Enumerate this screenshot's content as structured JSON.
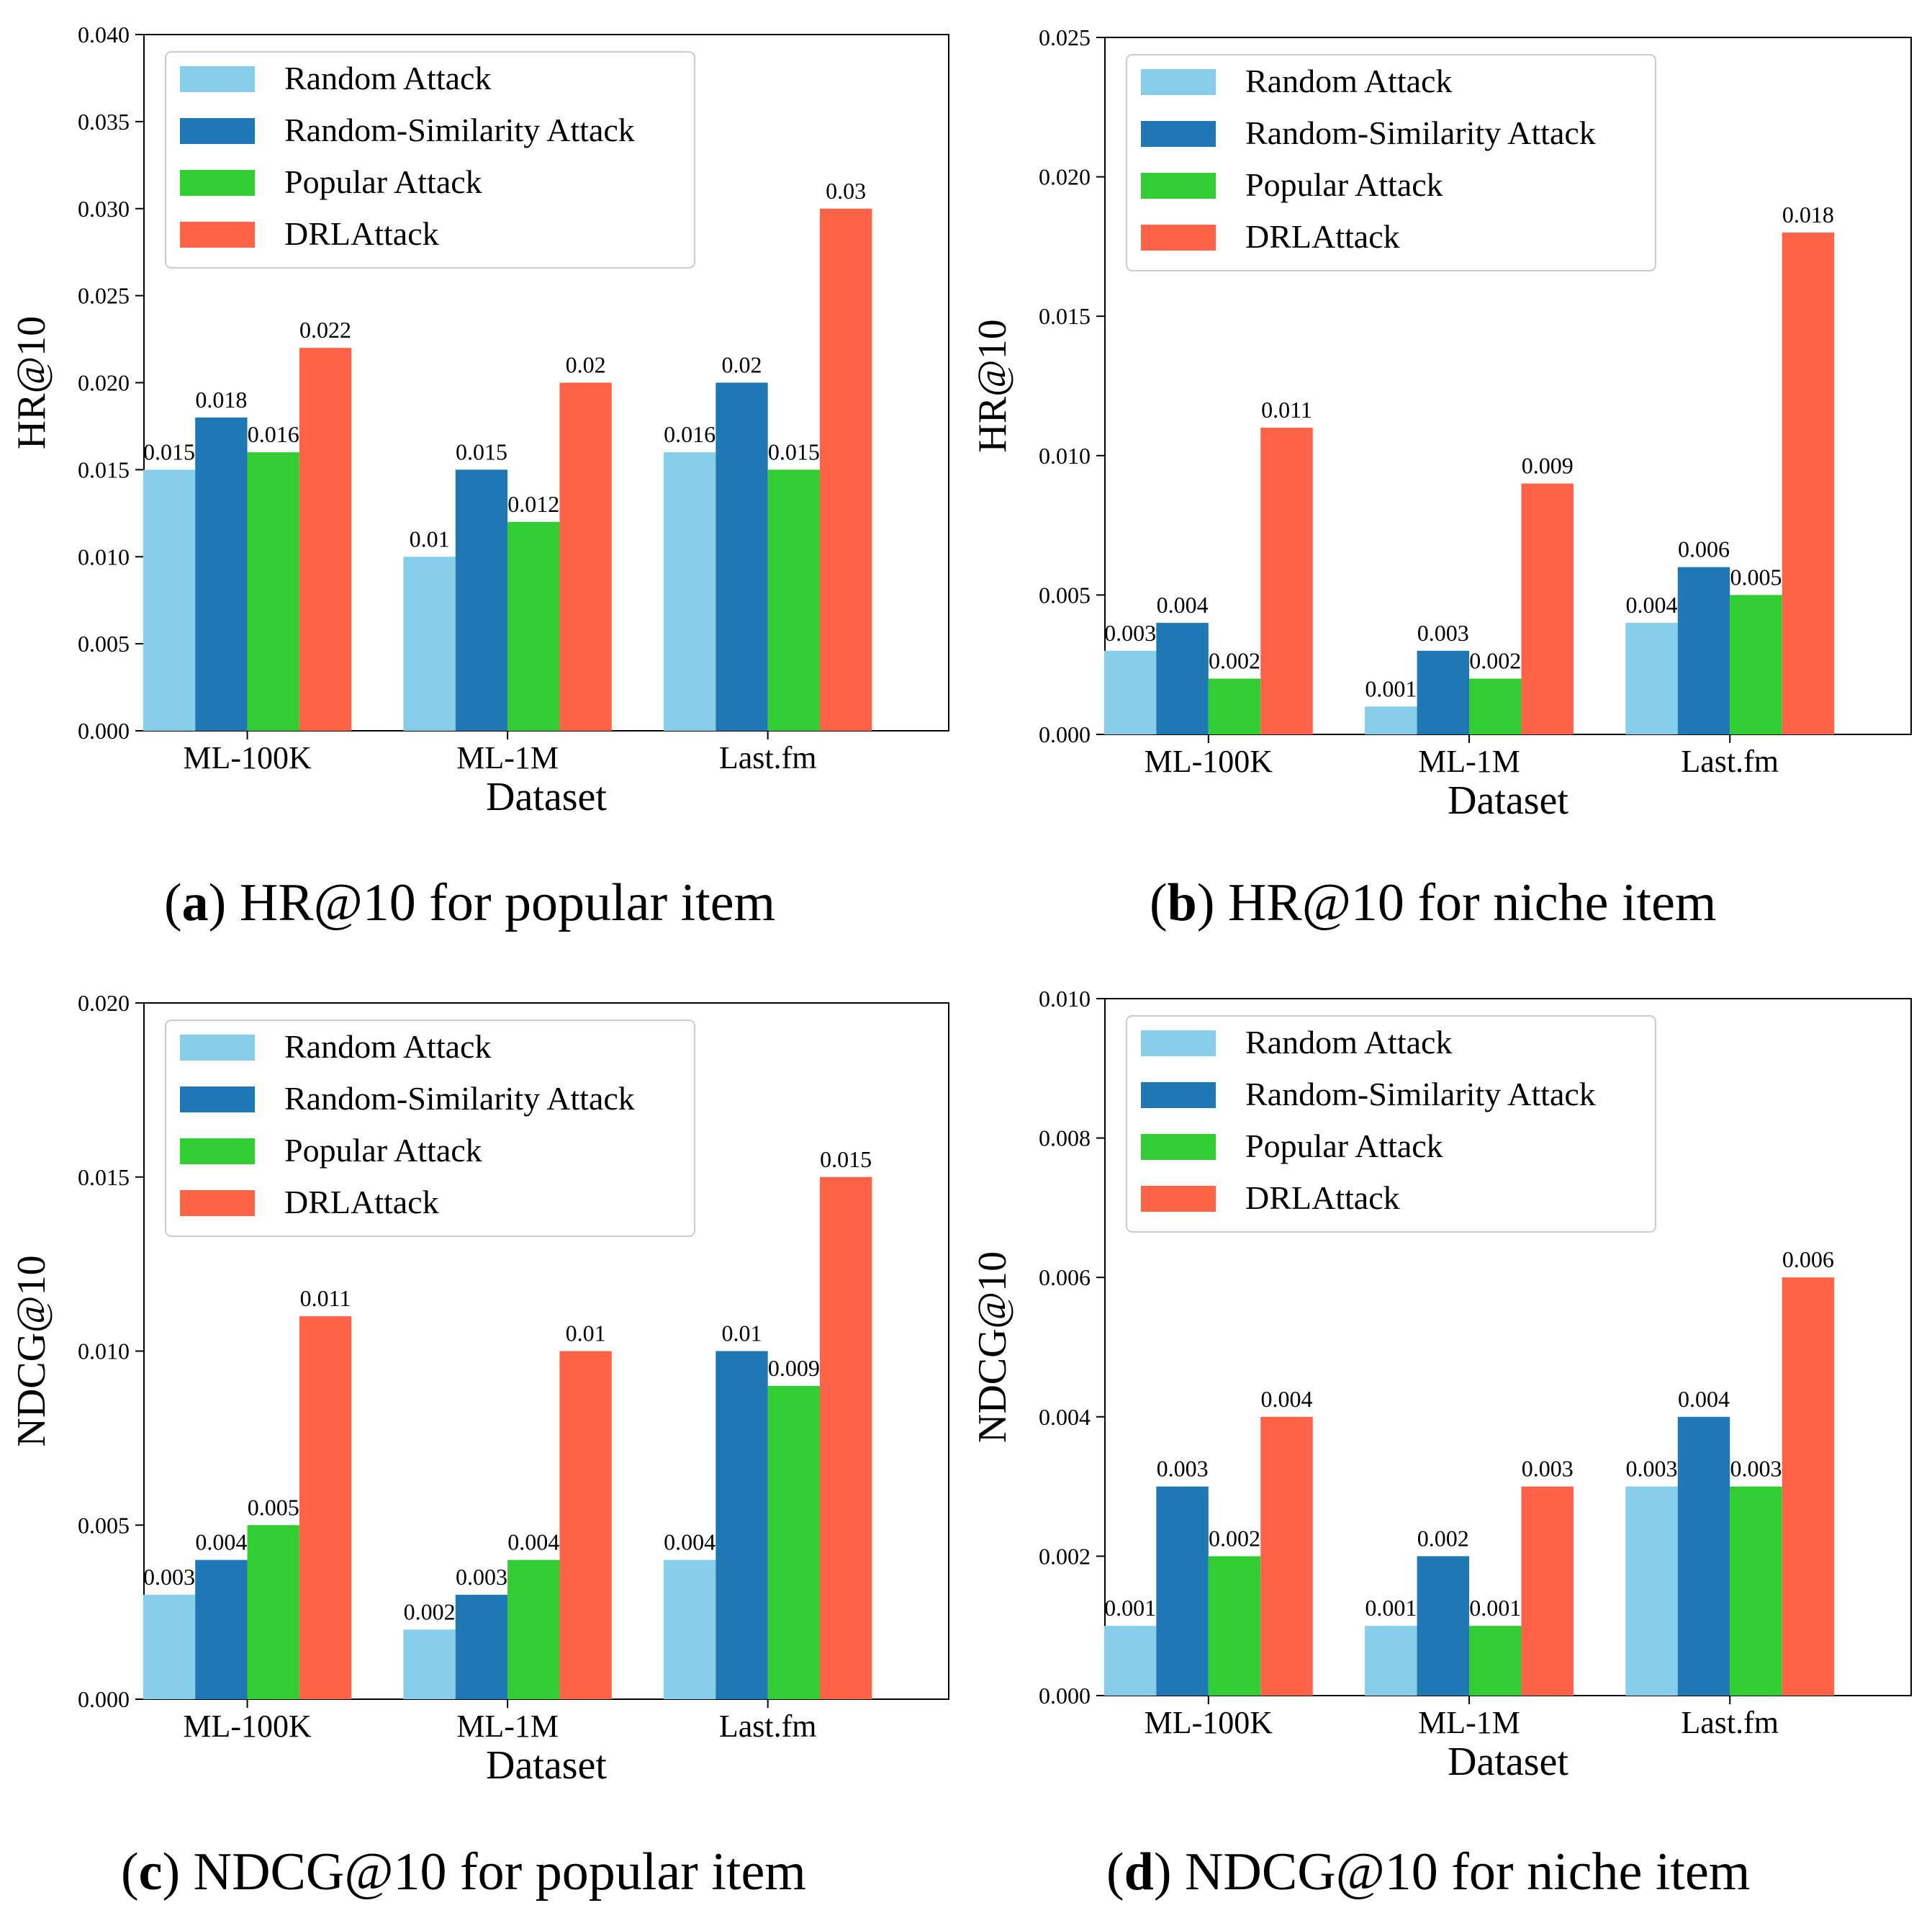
{
  "colors": {
    "Random Attack": "#87CEEB",
    "Random-Similarity Attack": "#1F77B4",
    "Popular Attack": "#32CD32",
    "DRLAttack": "#FF6347"
  },
  "chart_data": [
    {
      "type": "bar",
      "caption_letter": "a",
      "caption_text": "HR@10 for popular item",
      "xlabel": "Dataset",
      "ylabel": "HR@10",
      "categories": [
        "ML-100K",
        "ML-1M",
        "Last.fm"
      ],
      "ylim": [
        0,
        0.04
      ],
      "yticks": [
        "0.000",
        "0.005",
        "0.010",
        "0.015",
        "0.020",
        "0.025",
        "0.030",
        "0.035",
        "0.040"
      ],
      "legend_position": "upper-left",
      "series": [
        {
          "name": "Random Attack",
          "values": [
            0.015,
            0.01,
            0.016
          ],
          "labels": [
            "0.015",
            "0.01",
            "0.016"
          ]
        },
        {
          "name": "Random-Similarity Attack",
          "values": [
            0.018,
            0.015,
            0.02
          ],
          "labels": [
            "0.018",
            "0.015",
            "0.02"
          ]
        },
        {
          "name": "Popular Attack",
          "values": [
            0.016,
            0.012,
            0.015
          ],
          "labels": [
            "0.016",
            "0.012",
            "0.015"
          ]
        },
        {
          "name": "DRLAttack",
          "values": [
            0.022,
            0.02,
            0.03
          ],
          "labels": [
            "0.022",
            "0.02",
            "0.03"
          ]
        }
      ]
    },
    {
      "type": "bar",
      "caption_letter": "b",
      "caption_text": "HR@10 for niche item",
      "xlabel": "Dataset",
      "ylabel": "HR@10",
      "categories": [
        "ML-100K",
        "ML-1M",
        "Last.fm"
      ],
      "ylim": [
        0,
        0.025
      ],
      "yticks": [
        "0.000",
        "0.005",
        "0.010",
        "0.015",
        "0.020",
        "0.025"
      ],
      "legend_position": "upper-left",
      "series": [
        {
          "name": "Random Attack",
          "values": [
            0.003,
            0.001,
            0.004
          ],
          "labels": [
            "0.003",
            "0.001",
            "0.004"
          ]
        },
        {
          "name": "Random-Similarity Attack",
          "values": [
            0.004,
            0.003,
            0.006
          ],
          "labels": [
            "0.004",
            "0.003",
            "0.006"
          ]
        },
        {
          "name": "Popular Attack",
          "values": [
            0.002,
            0.002,
            0.005
          ],
          "labels": [
            "0.002",
            "0.002",
            "0.005"
          ]
        },
        {
          "name": "DRLAttack",
          "values": [
            0.011,
            0.009,
            0.018
          ],
          "labels": [
            "0.011",
            "0.009",
            "0.018"
          ]
        }
      ]
    },
    {
      "type": "bar",
      "caption_letter": "c",
      "caption_text": "NDCG@10 for popular item",
      "xlabel": "Dataset",
      "ylabel": "NDCG@10",
      "categories": [
        "ML-100K",
        "ML-1M",
        "Last.fm"
      ],
      "ylim": [
        0,
        0.02
      ],
      "yticks": [
        "0.000",
        "0.005",
        "0.010",
        "0.015",
        "0.020"
      ],
      "legend_position": "upper-left",
      "series": [
        {
          "name": "Random Attack",
          "values": [
            0.003,
            0.002,
            0.004
          ],
          "labels": [
            "0.003",
            "0.002",
            "0.004"
          ]
        },
        {
          "name": "Random-Similarity Attack",
          "values": [
            0.004,
            0.003,
            0.01
          ],
          "labels": [
            "0.004",
            "0.003",
            "0.01"
          ]
        },
        {
          "name": "Popular Attack",
          "values": [
            0.005,
            0.004,
            0.009
          ],
          "labels": [
            "0.005",
            "0.004",
            "0.009"
          ]
        },
        {
          "name": "DRLAttack",
          "values": [
            0.011,
            0.01,
            0.015
          ],
          "labels": [
            "0.011",
            "0.01",
            "0.015"
          ]
        }
      ]
    },
    {
      "type": "bar",
      "caption_letter": "d",
      "caption_text": "NDCG@10 for niche item",
      "xlabel": "Dataset",
      "ylabel": "NDCG@10",
      "categories": [
        "ML-100K",
        "ML-1M",
        "Last.fm"
      ],
      "ylim": [
        0,
        0.01
      ],
      "yticks": [
        "0.000",
        "0.002",
        "0.004",
        "0.006",
        "0.008",
        "0.010"
      ],
      "legend_position": "upper-left",
      "series": [
        {
          "name": "Random Attack",
          "values": [
            0.001,
            0.001,
            0.003
          ],
          "labels": [
            "0.001",
            "0.001",
            "0.003"
          ]
        },
        {
          "name": "Random-Similarity Attack",
          "values": [
            0.003,
            0.002,
            0.004
          ],
          "labels": [
            "0.003",
            "0.002",
            "0.004"
          ]
        },
        {
          "name": "Popular Attack",
          "values": [
            0.002,
            0.001,
            0.003
          ],
          "labels": [
            "0.002",
            "0.001",
            "0.003"
          ]
        },
        {
          "name": "DRLAttack",
          "values": [
            0.004,
            0.003,
            0.006
          ],
          "labels": [
            "0.004",
            "0.003",
            "0.006"
          ]
        }
      ]
    }
  ]
}
